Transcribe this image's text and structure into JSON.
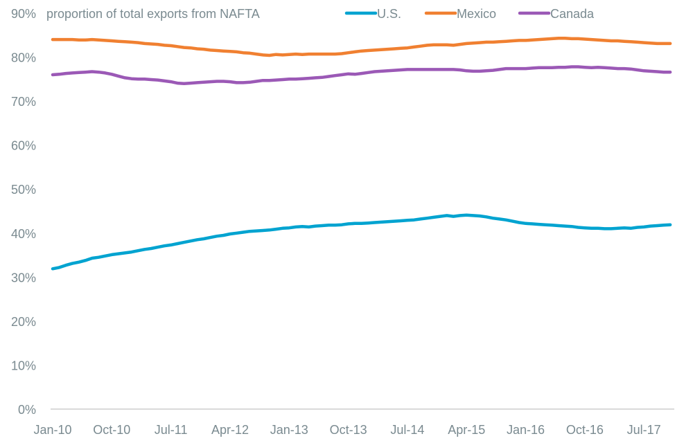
{
  "chart_data": {
    "type": "line",
    "title": "proportion of total exports from NAFTA",
    "xlabel": "",
    "ylabel": "",
    "ylim": [
      0,
      0.9
    ],
    "y_ticks": [
      0,
      0.1,
      0.2,
      0.3,
      0.4,
      0.5,
      0.6,
      0.7,
      0.8,
      0.9
    ],
    "y_tick_labels": [
      "0%",
      "10%",
      "20%",
      "30%",
      "40%",
      "50%",
      "60%",
      "70%",
      "80%",
      "90%"
    ],
    "x_tick_labels": [
      "Jan-10",
      "Oct-10",
      "Jul-11",
      "Apr-12",
      "Jan-13",
      "Oct-13",
      "Jul-14",
      "Apr-15",
      "Jan-16",
      "Oct-16",
      "Jul-17"
    ],
    "x_tick_month_index": [
      0,
      9,
      18,
      27,
      36,
      45,
      54,
      63,
      72,
      81,
      90
    ],
    "x_start": "Jan-10",
    "frequency": "monthly",
    "grid": false,
    "legend_position": "top",
    "series": [
      {
        "name": "U.S.",
        "color": "#00a3d0",
        "values": [
          0.319,
          0.322,
          0.327,
          0.331,
          0.334,
          0.338,
          0.343,
          0.345,
          0.348,
          0.351,
          0.353,
          0.355,
          0.357,
          0.36,
          0.363,
          0.365,
          0.368,
          0.371,
          0.373,
          0.376,
          0.379,
          0.382,
          0.385,
          0.387,
          0.39,
          0.393,
          0.395,
          0.398,
          0.4,
          0.402,
          0.404,
          0.405,
          0.406,
          0.407,
          0.409,
          0.411,
          0.412,
          0.414,
          0.415,
          0.414,
          0.416,
          0.417,
          0.418,
          0.418,
          0.419,
          0.421,
          0.422,
          0.422,
          0.423,
          0.424,
          0.425,
          0.426,
          0.427,
          0.428,
          0.429,
          0.43,
          0.432,
          0.434,
          0.436,
          0.438,
          0.44,
          0.438,
          0.44,
          0.441,
          0.44,
          0.439,
          0.437,
          0.434,
          0.432,
          0.43,
          0.427,
          0.424,
          0.422,
          0.421,
          0.42,
          0.419,
          0.418,
          0.417,
          0.416,
          0.415,
          0.413,
          0.412,
          0.411,
          0.411,
          0.41,
          0.41,
          0.411,
          0.412,
          0.411,
          0.413,
          0.414,
          0.416,
          0.417,
          0.418,
          0.419
        ]
      },
      {
        "name": "Mexico",
        "color": "#f08031",
        "values": [
          0.84,
          0.84,
          0.84,
          0.84,
          0.839,
          0.839,
          0.84,
          0.839,
          0.838,
          0.837,
          0.836,
          0.835,
          0.834,
          0.833,
          0.831,
          0.83,
          0.829,
          0.827,
          0.826,
          0.824,
          0.822,
          0.821,
          0.819,
          0.818,
          0.816,
          0.815,
          0.814,
          0.813,
          0.812,
          0.81,
          0.809,
          0.807,
          0.805,
          0.804,
          0.806,
          0.805,
          0.806,
          0.807,
          0.806,
          0.807,
          0.807,
          0.807,
          0.807,
          0.807,
          0.808,
          0.81,
          0.812,
          0.814,
          0.815,
          0.816,
          0.817,
          0.818,
          0.819,
          0.82,
          0.821,
          0.823,
          0.825,
          0.827,
          0.828,
          0.828,
          0.828,
          0.827,
          0.829,
          0.831,
          0.832,
          0.833,
          0.834,
          0.834,
          0.835,
          0.836,
          0.837,
          0.838,
          0.838,
          0.839,
          0.84,
          0.841,
          0.842,
          0.843,
          0.843,
          0.842,
          0.842,
          0.841,
          0.84,
          0.839,
          0.838,
          0.837,
          0.837,
          0.836,
          0.835,
          0.834,
          0.833,
          0.832,
          0.831,
          0.831,
          0.831
        ]
      },
      {
        "name": "Canada",
        "color": "#9b59b6",
        "values": [
          0.76,
          0.761,
          0.763,
          0.764,
          0.765,
          0.766,
          0.767,
          0.766,
          0.764,
          0.761,
          0.757,
          0.753,
          0.751,
          0.75,
          0.75,
          0.749,
          0.748,
          0.746,
          0.744,
          0.741,
          0.74,
          0.741,
          0.742,
          0.743,
          0.744,
          0.745,
          0.745,
          0.744,
          0.742,
          0.742,
          0.743,
          0.745,
          0.747,
          0.747,
          0.748,
          0.749,
          0.75,
          0.75,
          0.751,
          0.752,
          0.753,
          0.754,
          0.756,
          0.758,
          0.76,
          0.762,
          0.761,
          0.763,
          0.765,
          0.767,
          0.768,
          0.769,
          0.77,
          0.771,
          0.772,
          0.772,
          0.772,
          0.772,
          0.772,
          0.772,
          0.772,
          0.772,
          0.771,
          0.769,
          0.768,
          0.768,
          0.769,
          0.77,
          0.772,
          0.774,
          0.774,
          0.774,
          0.774,
          0.775,
          0.776,
          0.776,
          0.776,
          0.777,
          0.777,
          0.778,
          0.778,
          0.777,
          0.776,
          0.777,
          0.776,
          0.775,
          0.774,
          0.774,
          0.773,
          0.771,
          0.769,
          0.768,
          0.767,
          0.766,
          0.766
        ]
      }
    ]
  }
}
